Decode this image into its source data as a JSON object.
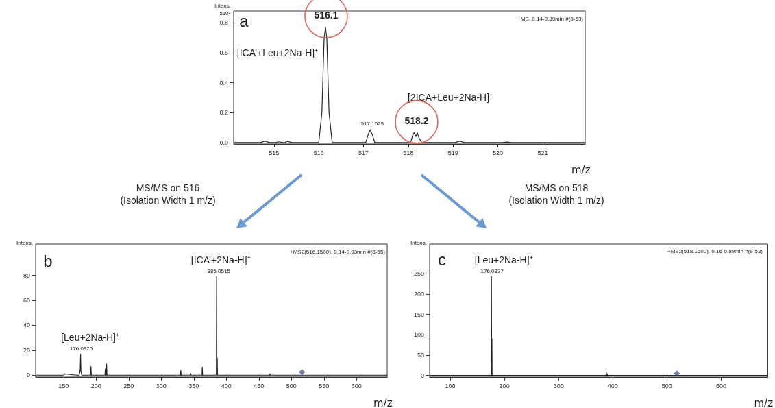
{
  "chart_data": [
    {
      "type": "line",
      "xlabel": "m/z",
      "ylabel": "Intens.\nx10⁴",
      "xlim": [
        514.1,
        521.95
      ],
      "ylim": [
        -0.01,
        0.88
      ],
      "xticks": [
        515,
        516,
        517,
        518,
        519,
        520,
        521
      ],
      "yticks": [
        {
          "value": 0,
          "label": "0.0"
        },
        {
          "value": 0.2,
          "label": "0.2"
        },
        {
          "value": 0.4,
          "label": "0.4"
        },
        {
          "value": 0.6,
          "label": "0.6"
        },
        {
          "value": 0.8,
          "label": "0.8"
        }
      ],
      "marker": "none",
      "series": [
        {
          "color": "#222222",
          "x": [
            514.1,
            514.7,
            514.8,
            514.9,
            515.05,
            515.1,
            515.2,
            515.25,
            515.3,
            515.4,
            516.0,
            516.07,
            516.12,
            516.15,
            516.18,
            516.23,
            516.3,
            517.05,
            517.1,
            517.15,
            517.2,
            517.25,
            518.05,
            518.1,
            518.13,
            518.17,
            518.2,
            518.24,
            518.3,
            519.05,
            519.15,
            519.25,
            520.1,
            520.2,
            520.3,
            521.95
          ],
          "values": [
            0,
            0,
            0.01,
            0,
            0,
            0.005,
            0,
            0,
            0.008,
            0,
            0,
            0.2,
            0.7,
            0.77,
            0.7,
            0.2,
            0,
            0,
            0.05,
            0.085,
            0.05,
            0,
            0,
            0.05,
            0.065,
            0.04,
            0.065,
            0.03,
            0,
            0,
            0.01,
            0,
            0,
            0.003,
            0,
            0
          ]
        }
      ],
      "annotations": [
        "a",
        "+MS, 0.14-0.89min #(8-53)",
        {
          "text": "516.1",
          "x": 516.15,
          "y": 0.77
        },
        {
          "text": "[ICA’+Leu+2Na-H]⁺",
          "x": 516.15,
          "y": 0.77
        },
        {
          "text": "517.1529",
          "x": 517.15,
          "y": 0.085
        },
        {
          "text": "518.2",
          "x": 518.17,
          "y": 0.065
        },
        "[2ICA+Leu+2Na-H]⁺"
      ]
    },
    {
      "type": "line",
      "xlabel": "m/z",
      "ylabel": "Intens.",
      "xlim": [
        107,
        647
      ],
      "ylim": [
        -1.5,
        105
      ],
      "xticks": [
        150,
        200,
        250,
        300,
        350,
        400,
        450,
        500,
        550,
        600
      ],
      "yticks": [
        0,
        20,
        40,
        60,
        80
      ],
      "marker": "none",
      "series": [
        {
          "color": "#222222",
          "x": [
            107,
            150,
            152,
            170,
            174,
            175.5,
            176.03,
            176.6,
            178,
            191.5,
            192,
            192.6,
            213.5,
            214,
            214.6,
            215.5,
            216,
            216.6,
            300,
            329.5,
            330,
            330.6,
            344.5,
            345,
            346,
            362.5,
            363,
            363.6,
            384.6,
            385.05,
            385.5,
            386,
            386.4,
            466.5,
            467,
            467.6,
            647
          ],
          "values": [
            0,
            0,
            1,
            0,
            0,
            5,
            17,
            3,
            0,
            0,
            7,
            0,
            0,
            5,
            0,
            0,
            9,
            0,
            0,
            0,
            4,
            0,
            0,
            1.5,
            0,
            0,
            6.5,
            0,
            0,
            79,
            0,
            14,
            0,
            0,
            1,
            0,
            0
          ]
        },
        {
          "type": "scatter",
          "marker": "diamond",
          "color": "#4a5a8c",
          "x": [
            516.15
          ],
          "values": [
            2.5
          ]
        }
      ],
      "annotations": [
        "b",
        "+MS2(516.1500), 0.14-0.93min #(8-55)",
        "MS/MS on 516\n(Isolation Width 1 m/z)",
        {
          "text": "[ICA’+2Na-H]⁺",
          "x": 385.05,
          "y": 79
        },
        {
          "text": "385.0515",
          "x": 385.05,
          "y": 79
        },
        {
          "text": "[Leu+2Na-H]⁺",
          "x": 176.03,
          "y": 17
        },
        {
          "text": "176.0325",
          "x": 176.03,
          "y": 17
        }
      ]
    },
    {
      "type": "line",
      "xlabel": "m/z",
      "ylabel": "Intens.",
      "xlim": [
        62,
        686
      ],
      "ylim": [
        -4,
        323
      ],
      "xticks": [
        100,
        200,
        300,
        400,
        500,
        600
      ],
      "yticks": [
        0,
        50,
        100,
        150,
        200,
        250
      ],
      "marker": "none",
      "series": [
        {
          "color": "#222222",
          "x": [
            62,
            175.5,
            176.03,
            176.5,
            176.8,
            177.0,
            177.3,
            387.5,
            388,
            388.5,
            389.5,
            390,
            390.5,
            686
          ],
          "values": [
            0,
            0,
            243,
            0,
            0,
            90,
            0,
            0,
            8,
            0,
            0,
            4,
            0,
            0
          ]
        },
        {
          "type": "scatter",
          "marker": "diamond",
          "color": "#4a5a8c",
          "x": [
            518.15
          ],
          "values": [
            5
          ]
        }
      ],
      "annotations": [
        "c",
        "+MS2(518.1500), 0.16-0.89min #(9-53)",
        "MS/MS on 518\n(Isolation Width 1 m/z)",
        {
          "text": "[Leu+2Na-H]⁺",
          "x": 176.03,
          "y": 243
        },
        {
          "text": "176.0337",
          "x": 176.03,
          "y": 243
        }
      ]
    }
  ]
}
